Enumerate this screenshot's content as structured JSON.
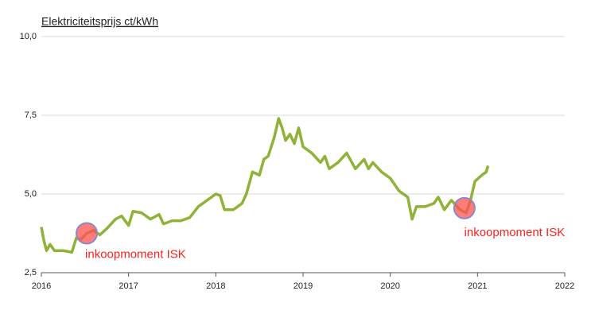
{
  "chart_data": {
    "type": "line",
    "title": "Elektriciteitsprijs ct/kWh",
    "x": [
      2016.0,
      2016.03,
      2016.06,
      2016.1,
      2016.15,
      2016.25,
      2016.35,
      2016.4,
      2016.45,
      2016.52,
      2016.6,
      2016.67,
      2016.75,
      2016.85,
      2016.92,
      2017.0,
      2017.05,
      2017.15,
      2017.25,
      2017.35,
      2017.4,
      2017.5,
      2017.6,
      2017.7,
      2017.8,
      2017.9,
      2018.0,
      2018.05,
      2018.1,
      2018.2,
      2018.3,
      2018.35,
      2018.42,
      2018.5,
      2018.55,
      2018.6,
      2018.67,
      2018.72,
      2018.76,
      2018.8,
      2018.85,
      2018.9,
      2018.95,
      2019.0,
      2019.1,
      2019.2,
      2019.25,
      2019.3,
      2019.4,
      2019.5,
      2019.6,
      2019.7,
      2019.75,
      2019.8,
      2019.9,
      2020.0,
      2020.1,
      2020.2,
      2020.25,
      2020.3,
      2020.4,
      2020.5,
      2020.55,
      2020.62,
      2020.7,
      2020.8,
      2020.87,
      2020.92,
      2020.97,
      2021.05,
      2021.1,
      2021.12
    ],
    "values": [
      3.95,
      3.5,
      3.2,
      3.4,
      3.2,
      3.2,
      3.15,
      3.6,
      3.55,
      3.75,
      3.85,
      3.7,
      3.9,
      4.2,
      4.3,
      4.0,
      4.45,
      4.4,
      4.2,
      4.35,
      4.05,
      4.15,
      4.15,
      4.25,
      4.6,
      4.8,
      5.0,
      4.95,
      4.5,
      4.5,
      4.7,
      5.0,
      5.7,
      5.6,
      6.1,
      6.2,
      6.8,
      7.4,
      7.1,
      6.7,
      6.9,
      6.6,
      7.1,
      6.5,
      6.3,
      6.0,
      6.2,
      5.8,
      6.0,
      6.3,
      5.8,
      6.1,
      5.8,
      6.0,
      5.7,
      5.5,
      5.1,
      4.9,
      4.2,
      4.6,
      4.6,
      4.7,
      4.9,
      4.5,
      4.8,
      4.5,
      4.4,
      4.8,
      5.4,
      5.6,
      5.7,
      5.9
    ],
    "color": "#8fb238",
    "xlim": [
      2016,
      2022
    ],
    "xticks": [
      2016,
      2017,
      2018,
      2019,
      2020,
      2021,
      2022
    ],
    "ylim": [
      2.5,
      10
    ],
    "yticks": [
      {
        "value": 2.5,
        "label": "2,5"
      },
      {
        "value": 5,
        "label": "5,0"
      },
      {
        "value": 7.5,
        "label": "7,5"
      },
      {
        "value": 10,
        "label": "10,0"
      }
    ],
    "grid": true,
    "annotations": [
      {
        "text": "inkoopmoment ISK",
        "x": 2016.52,
        "y": 3.75
      },
      {
        "text": "inkoopmoment ISK",
        "x": 2020.85,
        "y": 4.55
      }
    ]
  }
}
